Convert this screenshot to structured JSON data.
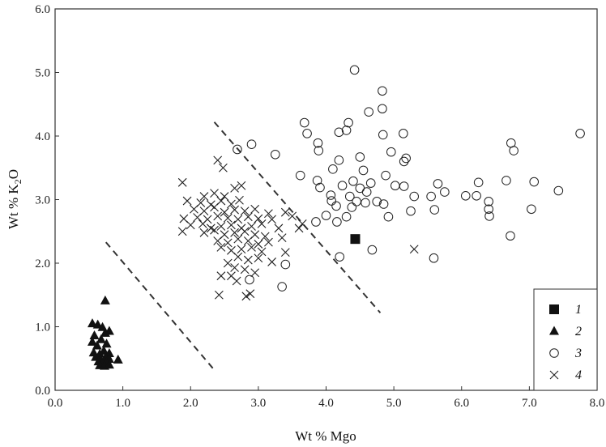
{
  "chart_data": {
    "type": "scatter",
    "title": "",
    "xlabel": "Wt % Mgo",
    "ylabel_parts": [
      "Wt % K",
      "2",
      "O"
    ],
    "xlim": [
      0,
      8
    ],
    "ylim": [
      0,
      6
    ],
    "x_ticks": [
      "0.0",
      "1.0",
      "2.0",
      "3.0",
      "4.0",
      "5.0",
      "6.0",
      "7.0",
      "8.0"
    ],
    "y_ticks": [
      "0.0",
      "1.0",
      "2.0",
      "3.0",
      "4.0",
      "5.0",
      "6.0"
    ],
    "grid": false,
    "legend_position": "bottom-right",
    "series": [
      {
        "name": "1",
        "marker": "filled-square",
        "points": [
          [
            4.43,
            2.38
          ]
        ]
      },
      {
        "name": "2",
        "marker": "filled-triangle",
        "points": [
          [
            0.55,
            1.05
          ],
          [
            0.63,
            1.03
          ],
          [
            0.7,
            0.99
          ],
          [
            0.74,
            1.41
          ],
          [
            0.8,
            0.93
          ],
          [
            0.74,
            0.9
          ],
          [
            0.58,
            0.86
          ],
          [
            0.68,
            0.8
          ],
          [
            0.55,
            0.76
          ],
          [
            0.76,
            0.73
          ],
          [
            0.62,
            0.7
          ],
          [
            0.57,
            0.59
          ],
          [
            0.66,
            0.57
          ],
          [
            0.72,
            0.62
          ],
          [
            0.8,
            0.58
          ],
          [
            0.6,
            0.52
          ],
          [
            0.67,
            0.48
          ],
          [
            0.74,
            0.51
          ],
          [
            0.8,
            0.49
          ],
          [
            0.64,
            0.45
          ],
          [
            0.7,
            0.42
          ],
          [
            0.76,
            0.44
          ],
          [
            0.66,
            0.39
          ],
          [
            0.73,
            0.38
          ],
          [
            0.8,
            0.4
          ],
          [
            0.93,
            0.48
          ]
        ]
      },
      {
        "name": "3",
        "marker": "open-circle",
        "points": [
          [
            4.42,
            5.04
          ],
          [
            4.83,
            4.71
          ],
          [
            4.83,
            4.43
          ],
          [
            4.63,
            4.38
          ],
          [
            4.33,
            4.21
          ],
          [
            3.68,
            4.21
          ],
          [
            4.19,
            4.06
          ],
          [
            4.3,
            4.09
          ],
          [
            4.84,
            4.02
          ],
          [
            5.14,
            4.04
          ],
          [
            7.75,
            4.04
          ],
          [
            3.72,
            4.04
          ],
          [
            2.9,
            3.87
          ],
          [
            3.88,
            3.89
          ],
          [
            3.89,
            3.77
          ],
          [
            2.69,
            3.79
          ],
          [
            3.25,
            3.71
          ],
          [
            6.73,
            3.89
          ],
          [
            6.77,
            3.77
          ],
          [
            4.96,
            3.75
          ],
          [
            4.5,
            3.67
          ],
          [
            5.18,
            3.65
          ],
          [
            4.19,
            3.62
          ],
          [
            5.15,
            3.6
          ],
          [
            4.1,
            3.48
          ],
          [
            4.55,
            3.46
          ],
          [
            3.62,
            3.38
          ],
          [
            4.88,
            3.38
          ],
          [
            3.87,
            3.3
          ],
          [
            4.4,
            3.29
          ],
          [
            4.66,
            3.26
          ],
          [
            5.65,
            3.25
          ],
          [
            4.24,
            3.22
          ],
          [
            5.15,
            3.21
          ],
          [
            6.25,
            3.27
          ],
          [
            6.66,
            3.3
          ],
          [
            7.07,
            3.28
          ],
          [
            3.91,
            3.19
          ],
          [
            4.5,
            3.18
          ],
          [
            5.02,
            3.22
          ],
          [
            4.07,
            3.07
          ],
          [
            4.35,
            3.05
          ],
          [
            4.6,
            3.12
          ],
          [
            5.3,
            3.05
          ],
          [
            5.55,
            3.05
          ],
          [
            5.75,
            3.12
          ],
          [
            7.43,
            3.14
          ],
          [
            6.06,
            3.06
          ],
          [
            6.22,
            3.06
          ],
          [
            4.45,
            2.97
          ],
          [
            4.75,
            2.97
          ],
          [
            6.4,
            2.97
          ],
          [
            4.08,
            2.98
          ],
          [
            4.15,
            2.9
          ],
          [
            4.38,
            2.88
          ],
          [
            4.58,
            2.95
          ],
          [
            4.85,
            2.93
          ],
          [
            5.25,
            2.82
          ],
          [
            5.6,
            2.84
          ],
          [
            6.4,
            2.85
          ],
          [
            7.03,
            2.85
          ],
          [
            4.0,
            2.75
          ],
          [
            4.3,
            2.73
          ],
          [
            4.92,
            2.73
          ],
          [
            6.41,
            2.74
          ],
          [
            3.85,
            2.65
          ],
          [
            4.16,
            2.65
          ],
          [
            4.68,
            2.21
          ],
          [
            6.72,
            2.43
          ],
          [
            4.2,
            2.1
          ],
          [
            5.59,
            2.08
          ],
          [
            3.4,
            1.98
          ],
          [
            3.35,
            1.63
          ],
          [
            2.87,
            1.74
          ]
        ]
      },
      {
        "name": "4",
        "marker": "cross",
        "points": [
          [
            2.4,
            3.62
          ],
          [
            2.48,
            3.5
          ],
          [
            1.88,
            3.27
          ],
          [
            2.2,
            3.05
          ],
          [
            2.35,
            3.1
          ],
          [
            2.5,
            3.05
          ],
          [
            2.65,
            3.18
          ],
          [
            2.75,
            3.22
          ],
          [
            1.95,
            2.98
          ],
          [
            2.15,
            2.95
          ],
          [
            2.3,
            2.92
          ],
          [
            2.45,
            2.98
          ],
          [
            2.6,
            2.93
          ],
          [
            2.72,
            2.99
          ],
          [
            2.05,
            2.85
          ],
          [
            2.2,
            2.82
          ],
          [
            2.35,
            2.88
          ],
          [
            2.5,
            2.8
          ],
          [
            2.65,
            2.84
          ],
          [
            2.8,
            2.82
          ],
          [
            2.95,
            2.85
          ],
          [
            3.15,
            2.78
          ],
          [
            3.4,
            2.8
          ],
          [
            1.9,
            2.7
          ],
          [
            2.1,
            2.72
          ],
          [
            2.25,
            2.69
          ],
          [
            2.4,
            2.74
          ],
          [
            2.55,
            2.71
          ],
          [
            2.7,
            2.69
          ],
          [
            2.85,
            2.73
          ],
          [
            3.0,
            2.7
          ],
          [
            3.2,
            2.69
          ],
          [
            3.5,
            2.74
          ],
          [
            3.65,
            2.62
          ],
          [
            3.6,
            2.55
          ],
          [
            2.0,
            2.6
          ],
          [
            2.18,
            2.62
          ],
          [
            2.3,
            2.55
          ],
          [
            2.45,
            2.58
          ],
          [
            2.6,
            2.6
          ],
          [
            2.75,
            2.55
          ],
          [
            2.9,
            2.58
          ],
          [
            3.05,
            2.62
          ],
          [
            3.3,
            2.55
          ],
          [
            1.88,
            2.5
          ],
          [
            2.2,
            2.48
          ],
          [
            2.35,
            2.52
          ],
          [
            2.5,
            2.45
          ],
          [
            2.65,
            2.48
          ],
          [
            2.8,
            2.5
          ],
          [
            2.95,
            2.45
          ],
          [
            3.1,
            2.42
          ],
          [
            3.35,
            2.4
          ],
          [
            2.4,
            2.35
          ],
          [
            2.55,
            2.32
          ],
          [
            2.7,
            2.38
          ],
          [
            2.85,
            2.35
          ],
          [
            3.0,
            2.3
          ],
          [
            3.15,
            2.33
          ],
          [
            2.45,
            2.25
          ],
          [
            2.6,
            2.2
          ],
          [
            2.75,
            2.22
          ],
          [
            2.9,
            2.25
          ],
          [
            3.05,
            2.18
          ],
          [
            3.4,
            2.17
          ],
          [
            2.7,
            2.1
          ],
          [
            2.85,
            2.05
          ],
          [
            3.0,
            2.08
          ],
          [
            3.2,
            2.02
          ],
          [
            2.55,
            2.0
          ],
          [
            2.65,
            1.93
          ],
          [
            2.8,
            1.9
          ],
          [
            2.45,
            1.8
          ],
          [
            2.6,
            1.8
          ],
          [
            2.68,
            1.72
          ],
          [
            2.95,
            1.85
          ],
          [
            2.42,
            1.5
          ],
          [
            2.82,
            1.48
          ],
          [
            2.88,
            1.52
          ],
          [
            5.3,
            2.22
          ]
        ]
      }
    ],
    "lines": [
      {
        "style": "dashed",
        "points": [
          [
            0.75,
            2.33
          ],
          [
            2.35,
            0.32
          ]
        ]
      },
      {
        "style": "dashed",
        "points": [
          [
            2.35,
            4.22
          ],
          [
            4.8,
            1.22
          ]
        ]
      }
    ]
  }
}
